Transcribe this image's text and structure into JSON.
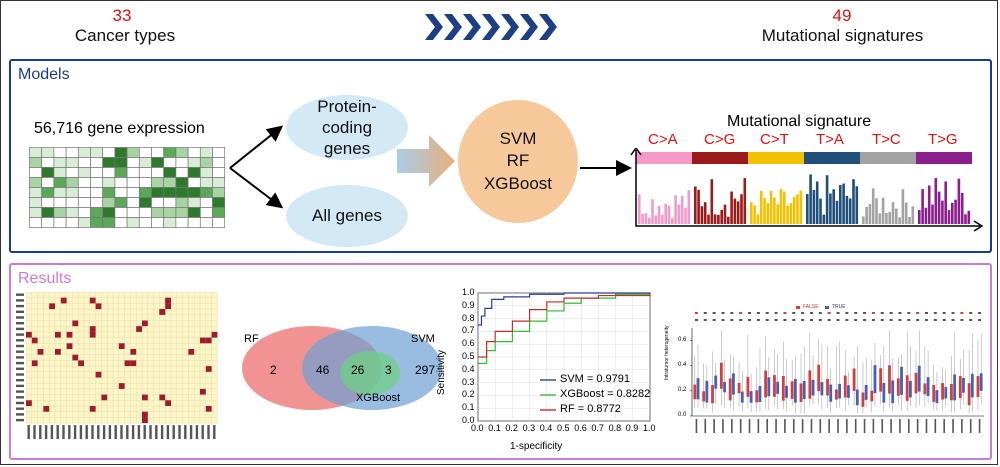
{
  "header": {
    "cancer_count": "33",
    "cancer_label": "Cancer types",
    "signature_count": "49",
    "signature_label": "Mutational signatures"
  },
  "models": {
    "title": "Models",
    "gene_expression_label": "56,716 gene expression",
    "protein_coding": "Protein-coding genes",
    "all_genes": "All genes",
    "algorithms": [
      "SVM",
      "RF",
      "XGBoost"
    ],
    "signature_title": "Mutational signature",
    "substitutions": [
      {
        "label": "C>A",
        "color": "#f59ac8"
      },
      {
        "label": "C>G",
        "color": "#9b1a1a"
      },
      {
        "label": "C>T",
        "color": "#f2c200"
      },
      {
        "label": "T>A",
        "color": "#1f4f7a"
      },
      {
        "label": "T>C",
        "color": "#a3a3a3"
      },
      {
        "label": "T>G",
        "color": "#8a1f8c"
      }
    ]
  },
  "results": {
    "title": "Results",
    "venn": {
      "rf_label": "RF",
      "svm_label": "SVM",
      "xgb_label": "XGBoost",
      "rf_only": "2",
      "rf_svm": "46",
      "all_three": "26",
      "svm_xgb": "3",
      "svm_only": "297"
    },
    "roc": {
      "xlabel": "1-specificity",
      "ylabel": "Sensitivity",
      "ticks": [
        "0.0",
        "0.1",
        "0.2",
        "0.3",
        "0.4",
        "0.5",
        "0.6",
        "0.7",
        "0.8",
        "0.9",
        "1.0"
      ],
      "legend": [
        {
          "label": "SVM = 0.9791",
          "color": "#2a3f9c"
        },
        {
          "label": "XGBoost = 0.8282",
          "color": "#2fbf2f"
        },
        {
          "label": "RF = 0.8772",
          "color": "#c82b2b"
        }
      ]
    },
    "boxplot": {
      "legend_false": "FALSE",
      "legend_true": "TRUE",
      "ylabel": "Intratumor heterogeneity",
      "yticks": [
        "0.0",
        "0.2",
        "0.4",
        "0.6"
      ]
    }
  },
  "colors": {
    "models_border": "#1a3d8f",
    "models_title": "#1a3d8f",
    "results_border": "#c77dd6",
    "results_title": "#c77dd6",
    "chevron": "#1e3f85"
  }
}
